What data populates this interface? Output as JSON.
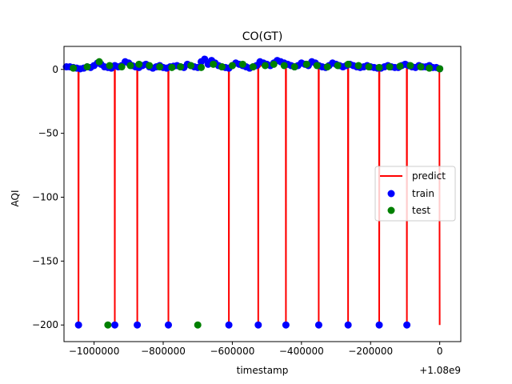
{
  "chart_data": {
    "type": "line",
    "title": "CO(GT)",
    "xlabel": "timestamp",
    "ylabel": "AQI",
    "x_offset_label": "+1.08e9",
    "xlim": [
      -1087000,
      61000
    ],
    "ylim": [
      -213,
      18
    ],
    "x_ticks": [
      {
        "value": -1000000,
        "label": "−1000000"
      },
      {
        "value": -800000,
        "label": "−800000"
      },
      {
        "value": -600000,
        "label": "−600000"
      },
      {
        "value": -400000,
        "label": "−400000"
      },
      {
        "value": -200000,
        "label": "−200000"
      },
      {
        "value": 0,
        "label": "0"
      }
    ],
    "y_ticks": [
      {
        "value": 0,
        "label": "0"
      },
      {
        "value": -50,
        "label": "−50"
      },
      {
        "value": -100,
        "label": "−100"
      },
      {
        "value": -150,
        "label": "−150"
      },
      {
        "value": -200,
        "label": "−200"
      }
    ],
    "grid": false,
    "legend_position": "center-right",
    "legend": [
      {
        "label": "predict",
        "kind": "line",
        "color": "#ff0000"
      },
      {
        "label": "train",
        "kind": "marker",
        "color": "#0000ff"
      },
      {
        "label": "test",
        "kind": "marker",
        "color": "#008000"
      }
    ],
    "series": [
      {
        "name": "train",
        "color": "#0000ff",
        "x": [
          -1080000,
          -1070000,
          -1060000,
          -1050000,
          -1040000,
          -1030000,
          -1020000,
          -1010000,
          -1000000,
          -990000,
          -980000,
          -970000,
          -960000,
          -950000,
          -940000,
          -930000,
          -920000,
          -910000,
          -900000,
          -890000,
          -880000,
          -870000,
          -860000,
          -850000,
          -840000,
          -830000,
          -820000,
          -810000,
          -800000,
          -790000,
          -780000,
          -770000,
          -760000,
          -750000,
          -740000,
          -730000,
          -720000,
          -710000,
          -700000,
          -690000,
          -680000,
          -670000,
          -660000,
          -650000,
          -640000,
          -630000,
          -620000,
          -610000,
          -600000,
          -590000,
          -580000,
          -570000,
          -560000,
          -550000,
          -540000,
          -530000,
          -520000,
          -510000,
          -500000,
          -490000,
          -480000,
          -470000,
          -460000,
          -450000,
          -440000,
          -430000,
          -420000,
          -410000,
          -400000,
          -390000,
          -380000,
          -370000,
          -360000,
          -350000,
          -340000,
          -330000,
          -320000,
          -310000,
          -300000,
          -290000,
          -280000,
          -270000,
          -260000,
          -250000,
          -240000,
          -230000,
          -220000,
          -210000,
          -200000,
          -190000,
          -180000,
          -170000,
          -160000,
          -150000,
          -140000,
          -130000,
          -120000,
          -110000,
          -100000,
          -90000,
          -80000,
          -70000,
          -60000,
          -50000,
          -40000,
          -30000,
          -20000,
          -10000,
          0,
          -1045000,
          -940000,
          -875000,
          -785000,
          -610000,
          -525000,
          -445000,
          -350000,
          -265000,
          -175000,
          -95000
        ],
        "y": [
          2,
          2,
          1.5,
          1,
          0.5,
          1,
          2,
          1.5,
          3,
          5,
          4,
          2,
          1.5,
          1,
          3,
          2,
          3,
          6,
          5,
          3,
          2,
          1.5,
          3,
          4,
          2,
          1,
          2,
          3,
          1.5,
          1,
          2,
          2.5,
          3,
          2,
          1.5,
          4,
          3,
          2,
          1.5,
          6,
          8,
          4,
          7,
          5,
          3,
          2,
          1.5,
          1,
          3,
          5,
          4,
          3,
          2,
          1,
          2,
          3,
          6,
          5,
          4,
          3,
          5,
          7,
          6,
          5,
          4,
          3,
          2,
          3,
          5,
          4,
          3,
          6,
          5,
          3,
          2,
          1.5,
          3,
          5,
          4,
          3,
          2,
          3,
          4,
          3,
          2,
          1.5,
          2,
          3,
          2,
          1.5,
          1,
          1,
          2,
          3,
          2,
          1.5,
          1.5,
          3,
          4,
          3,
          2,
          1.5,
          3,
          2,
          2,
          3,
          1.5,
          1.5,
          0.5,
          -200,
          -200,
          -200,
          -200,
          -200,
          -200,
          -200,
          -200,
          -200,
          -200,
          -200
        ]
      },
      {
        "name": "test",
        "color": "#008000",
        "x": [
          -1060000,
          -1020000,
          -985000,
          -955000,
          -920000,
          -895000,
          -870000,
          -840000,
          -810000,
          -775000,
          -750000,
          -720000,
          -690000,
          -655000,
          -630000,
          -600000,
          -570000,
          -540000,
          -505000,
          -480000,
          -450000,
          -420000,
          -385000,
          -355000,
          -325000,
          -295000,
          -265000,
          -235000,
          -205000,
          -175000,
          -145000,
          -115000,
          -85000,
          -55000,
          -30000,
          0,
          -960000,
          -700000
        ],
        "y": [
          1,
          2,
          6,
          3,
          2,
          3,
          4,
          3,
          2,
          1.5,
          2,
          3,
          1.5,
          4,
          2,
          3,
          4,
          2,
          3,
          4,
          3,
          2,
          4,
          3,
          2,
          3,
          4,
          3,
          2,
          1.5,
          2,
          2.5,
          3,
          2,
          1,
          0.5,
          -200,
          -200
        ]
      },
      {
        "name": "predict",
        "color": "#ff0000",
        "x": [
          -1060000,
          -1050000,
          -1045500,
          -1045000,
          -1044500,
          -1040000,
          -1030000,
          -1020000,
          -1010000,
          -1000000,
          -990000,
          -980000,
          -970000,
          -960000,
          -950000,
          -940500,
          -940000,
          -939500,
          -930000,
          -920000,
          -910000,
          -900000,
          -890000,
          -880000,
          -875500,
          -875000,
          -874500,
          -860000,
          -850000,
          -840000,
          -830000,
          -820000,
          -810000,
          -800000,
          -790000,
          -785500,
          -785000,
          -784500,
          -770000,
          -760000,
          -750000,
          -740000,
          -730000,
          -720000,
          -710000,
          -700000,
          -690000,
          -680000,
          -670000,
          -660000,
          -650000,
          -640000,
          -630000,
          -620000,
          -610500,
          -610000,
          -609500,
          -600000,
          -590000,
          -580000,
          -570000,
          -560000,
          -550000,
          -540000,
          -530000,
          -525500,
          -525000,
          -524500,
          -510000,
          -500000,
          -490000,
          -480000,
          -470000,
          -460000,
          -450000,
          -445500,
          -445000,
          -444500,
          -430000,
          -420000,
          -410000,
          -400000,
          -390000,
          -380000,
          -370000,
          -360000,
          -350500,
          -350000,
          -349500,
          -340000,
          -330000,
          -320000,
          -310000,
          -300000,
          -290000,
          -280000,
          -270000,
          -265500,
          -265000,
          -264500,
          -250000,
          -240000,
          -230000,
          -220000,
          -210000,
          -200000,
          -190000,
          -180000,
          -175500,
          -175000,
          -174500,
          -160000,
          -150000,
          -140000,
          -130000,
          -120000,
          -110000,
          -100000,
          -95500,
          -95000,
          -94500,
          -80000,
          -70000,
          -60000,
          -50000,
          -40000,
          -30000,
          -20000,
          -10000,
          -1000,
          0
        ],
        "y": [
          1,
          1,
          0,
          -200,
          0,
          1,
          2,
          1.5,
          3,
          4,
          3.5,
          2,
          1.5,
          2,
          2,
          1,
          -200,
          1,
          2,
          3,
          5,
          4,
          3,
          2,
          1,
          -200,
          1,
          3,
          3.5,
          2,
          1,
          2,
          2.5,
          1.5,
          1,
          0.5,
          -200,
          0.5,
          2,
          2.5,
          2,
          1.5,
          3,
          2.5,
          2,
          1.5,
          4,
          6,
          4,
          5,
          4,
          3,
          2,
          1.5,
          1,
          -200,
          1,
          3,
          4,
          3.5,
          3,
          2,
          1,
          2,
          2,
          1,
          -200,
          1,
          5,
          4,
          3,
          4,
          6,
          5,
          4,
          3,
          -200,
          2,
          2,
          3,
          4,
          3.5,
          3,
          5,
          4,
          3,
          2,
          -200,
          1.5,
          2,
          3,
          4,
          3.5,
          3,
          2,
          2.5,
          3,
          2,
          -200,
          2,
          2,
          1.5,
          2,
          2.5,
          2,
          1.5,
          1,
          1,
          1,
          -200,
          1,
          2,
          2.5,
          2,
          1.5,
          1.5,
          2.5,
          3,
          2,
          -200,
          1.5,
          2.5,
          2,
          2,
          2,
          2.5,
          1.5,
          1,
          0.5,
          0,
          -200
        ]
      }
    ]
  }
}
